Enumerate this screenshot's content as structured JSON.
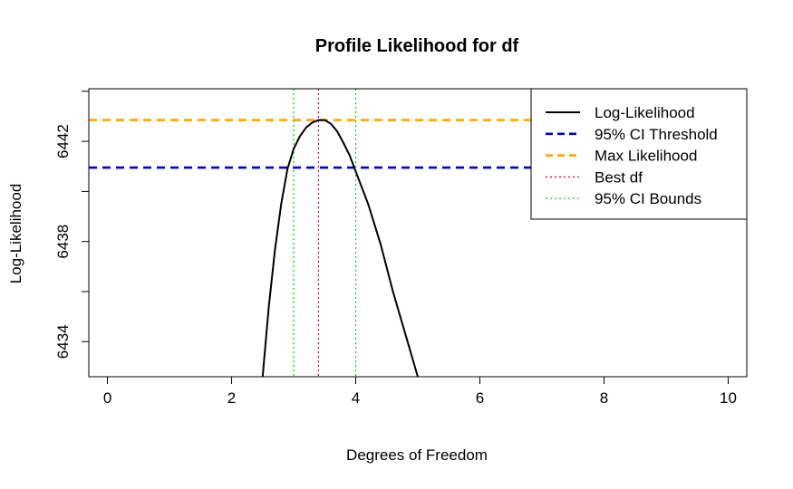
{
  "chart_data": {
    "type": "line",
    "title": "Profile Likelihood for df",
    "xlabel": "Degrees of Freedom",
    "ylabel": "Log-Likelihood",
    "xlim": [
      -0.3,
      10.3
    ],
    "ylim": [
      6432.6,
      6444.1
    ],
    "xticks": [
      0,
      2,
      4,
      6,
      8,
      10
    ],
    "yticks": [
      6434,
      6436,
      6438,
      6440,
      6442,
      6444
    ],
    "ytick_labels": {
      "6434": "6434",
      "6438": "6438",
      "6442": "6442"
    },
    "grid": false,
    "legend_position": "top-right",
    "series": [
      {
        "name": "Log-Likelihood",
        "style": "solid",
        "color": "#000000",
        "x": [
          2.5,
          2.6,
          2.7,
          2.8,
          2.9,
          3.0,
          3.1,
          3.2,
          3.3,
          3.4,
          3.5,
          3.6,
          3.7,
          3.8,
          3.9,
          4.0,
          4.2,
          4.4,
          4.6,
          4.8,
          5.0
        ],
        "y": [
          6432.6,
          6435.4,
          6437.7,
          6439.5,
          6440.9,
          6441.7,
          6442.2,
          6442.55,
          6442.75,
          6442.85,
          6442.85,
          6442.7,
          6442.4,
          6441.95,
          6441.45,
          6440.8,
          6439.5,
          6437.9,
          6436.0,
          6434.3,
          6432.6
        ]
      }
    ],
    "reference_lines": [
      {
        "name": "95% CI Threshold",
        "orientation": "horizontal",
        "value": 6440.95,
        "style": "dashed",
        "color": "#0000CD"
      },
      {
        "name": "Max Likelihood",
        "orientation": "horizontal",
        "value": 6442.85,
        "style": "dashed",
        "color": "#FFA500"
      },
      {
        "name": "Best df",
        "orientation": "vertical",
        "value": 3.4,
        "style": "dotted",
        "color": "#CD0050"
      },
      {
        "name": "95% CI Bounds",
        "orientation": "vertical",
        "value": 3.0,
        "style": "dotted",
        "color": "#00CD00"
      },
      {
        "name": "95% CI Bounds",
        "orientation": "vertical",
        "value": 4.0,
        "style": "dotted",
        "color": "#00CD00"
      }
    ],
    "legend": [
      {
        "label": "Log-Likelihood",
        "style": "solid",
        "color": "#000000"
      },
      {
        "label": "95% CI Threshold",
        "style": "dashed",
        "color": "#0000CD"
      },
      {
        "label": "Max Likelihood",
        "style": "dashed",
        "color": "#FFA500"
      },
      {
        "label": "Best df",
        "style": "dotted",
        "color": "#CD0050"
      },
      {
        "label": "95% CI Bounds",
        "style": "dotted",
        "color": "#00CD00"
      }
    ]
  }
}
